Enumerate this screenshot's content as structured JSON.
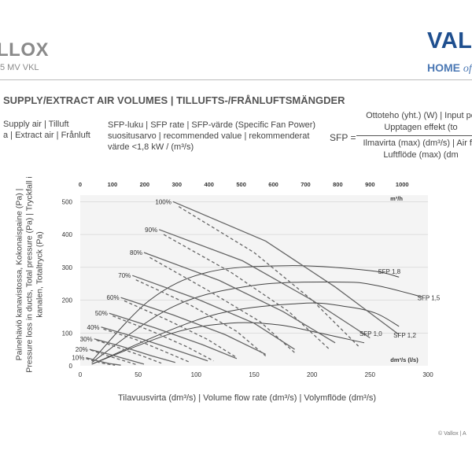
{
  "header": {
    "brand_left": "LLOX",
    "brand_left_sub": "5 MV VKL",
    "brand_right": "VALL",
    "brand_right_sub_main": "HOME",
    "brand_right_sub_italic": "of"
  },
  "section_title": "SUPPLY/EXTRACT AIR VOLUMES | TILLUFTS-/FRÅNLUFTSMÄNGDER",
  "legend": {
    "supply": "Supply air | Tilluft",
    "extract": "a | Extract air | Frånluft"
  },
  "sfp_description": {
    "line1": "SFP-luku | SFP rate | SFP-värde (Specific Fan Power)",
    "line2": "suositusarvo | recommended value | rekommenderat",
    "line3": "värde <1,8 kW / (m³/s)"
  },
  "formula": {
    "label": "SFP =",
    "numerator_1": "Ottoteho (yht.) (W) | Input po",
    "numerator_2": "Upptagen effekt (to",
    "denominator_1": "Ilmavirta (max) (dm³/s) | Air flo",
    "denominator_2": "Luftflöde (max) (dm"
  },
  "copyright": "© Vallox | A",
  "colors": {
    "brand_blue": "#1f4f8f",
    "curve": "#666666",
    "plot_bg": "#f4f4f4",
    "grid": "#d0d0d0"
  },
  "chart_data": {
    "type": "line",
    "x_bottom": {
      "label": "Tilavuusvirta (dm³/s) | Volume flow rate (dm³/s) | Volymflöde (dm³/s)",
      "unit_label": "dm³/s (l/s)",
      "range": [
        0,
        300
      ],
      "ticks": [
        0,
        50,
        100,
        150,
        200,
        250,
        300
      ]
    },
    "x_top": {
      "unit_label": "m³/h",
      "range": [
        0,
        1080
      ],
      "ticks": [
        0,
        100,
        200,
        300,
        400,
        500,
        600,
        700,
        800,
        900,
        1000
      ]
    },
    "y": {
      "label": "Painehäviö kanavistossa, Kokonaispaine (Pa) | Pressure loss in ducts, Total pressure (Pa) | Tryckfall i kanalen, Totaltryck (Pa)",
      "range": [
        0,
        520
      ],
      "ticks": [
        0,
        100,
        200,
        300,
        400,
        500
      ]
    },
    "fan_speed_curves": [
      {
        "label": "100%",
        "supply": [
          [
            80,
            500
          ],
          [
            160,
            380
          ],
          [
            220,
            240
          ],
          [
            275,
            95
          ]
        ],
        "extract": [
          [
            85,
            485
          ],
          [
            150,
            345
          ],
          [
            200,
            200
          ],
          [
            240,
            60
          ]
        ]
      },
      {
        "label": "90%",
        "supply": [
          [
            68,
            415
          ],
          [
            140,
            320
          ],
          [
            200,
            200
          ],
          [
            250,
            85
          ]
        ],
        "extract": [
          [
            72,
            400
          ],
          [
            130,
            285
          ],
          [
            180,
            165
          ],
          [
            215,
            50
          ]
        ]
      },
      {
        "label": "80%",
        "supply": [
          [
            55,
            345
          ],
          [
            120,
            260
          ],
          [
            175,
            165
          ],
          [
            220,
            70
          ]
        ],
        "extract": [
          [
            60,
            330
          ],
          [
            110,
            230
          ],
          [
            155,
            135
          ],
          [
            185,
            40
          ]
        ]
      },
      {
        "label": "70%",
        "supply": [
          [
            45,
            275
          ],
          [
            100,
            205
          ],
          [
            150,
            130
          ],
          [
            185,
            50
          ]
        ],
        "extract": [
          [
            48,
            262
          ],
          [
            95,
            185
          ],
          [
            135,
            105
          ],
          [
            160,
            30
          ]
        ]
      },
      {
        "label": "60%",
        "supply": [
          [
            35,
            208
          ],
          [
            80,
            155
          ],
          [
            125,
            95
          ],
          [
            160,
            35
          ]
        ],
        "extract": [
          [
            38,
            198
          ],
          [
            75,
            140
          ],
          [
            110,
            80
          ],
          [
            135,
            25
          ]
        ]
      },
      {
        "label": "50%",
        "supply": [
          [
            25,
            160
          ],
          [
            65,
            115
          ],
          [
            105,
            65
          ],
          [
            135,
            22
          ]
        ],
        "extract": [
          [
            28,
            152
          ],
          [
            62,
            105
          ],
          [
            92,
            58
          ],
          [
            115,
            15
          ]
        ]
      },
      {
        "label": "40%",
        "supply": [
          [
            18,
            118
          ],
          [
            50,
            85
          ],
          [
            85,
            45
          ],
          [
            110,
            15
          ]
        ],
        "extract": [
          [
            20,
            112
          ],
          [
            48,
            80
          ],
          [
            75,
            40
          ],
          [
            95,
            10
          ]
        ]
      },
      {
        "label": "30%",
        "supply": [
          [
            12,
            82
          ],
          [
            35,
            60
          ],
          [
            62,
            30
          ],
          [
            82,
            10
          ]
        ],
        "extract": [
          [
            14,
            78
          ],
          [
            33,
            55
          ],
          [
            55,
            28
          ],
          [
            70,
            8
          ]
        ]
      },
      {
        "label": "20%",
        "supply": [
          [
            8,
            50
          ],
          [
            25,
            35
          ],
          [
            42,
            18
          ],
          [
            55,
            5
          ]
        ],
        "extract": [
          [
            9,
            48
          ],
          [
            22,
            32
          ],
          [
            38,
            15
          ],
          [
            48,
            4
          ]
        ]
      },
      {
        "label": "10%",
        "supply": [
          [
            5,
            25
          ],
          [
            15,
            15
          ],
          [
            25,
            7
          ],
          [
            35,
            2
          ]
        ],
        "extract": [
          [
            5,
            22
          ],
          [
            13,
            13
          ],
          [
            22,
            6
          ],
          [
            30,
            2
          ]
        ]
      }
    ],
    "sfp_curves": [
      {
        "label": "SFP 1,8",
        "points": [
          [
            10,
            15
          ],
          [
            60,
            200
          ],
          [
            110,
            285
          ],
          [
            180,
            305
          ],
          [
            250,
            290
          ],
          [
            275,
            270
          ]
        ]
      },
      {
        "label": "SFP 1,5",
        "points": [
          [
            10,
            10
          ],
          [
            80,
            180
          ],
          [
            150,
            245
          ],
          [
            225,
            255
          ],
          [
            255,
            245
          ],
          [
            295,
            210
          ]
        ]
      },
      {
        "label": "SFP 1,2",
        "points": [
          [
            10,
            5
          ],
          [
            110,
            150
          ],
          [
            190,
            190
          ],
          [
            230,
            180
          ],
          [
            255,
            160
          ],
          [
            275,
            120
          ]
        ]
      },
      {
        "label": "SFP 1,0",
        "points": [
          [
            10,
            5
          ],
          [
            80,
            100
          ],
          [
            130,
            130
          ],
          [
            170,
            125
          ],
          [
            200,
            105
          ],
          [
            245,
            70
          ]
        ]
      }
    ]
  }
}
